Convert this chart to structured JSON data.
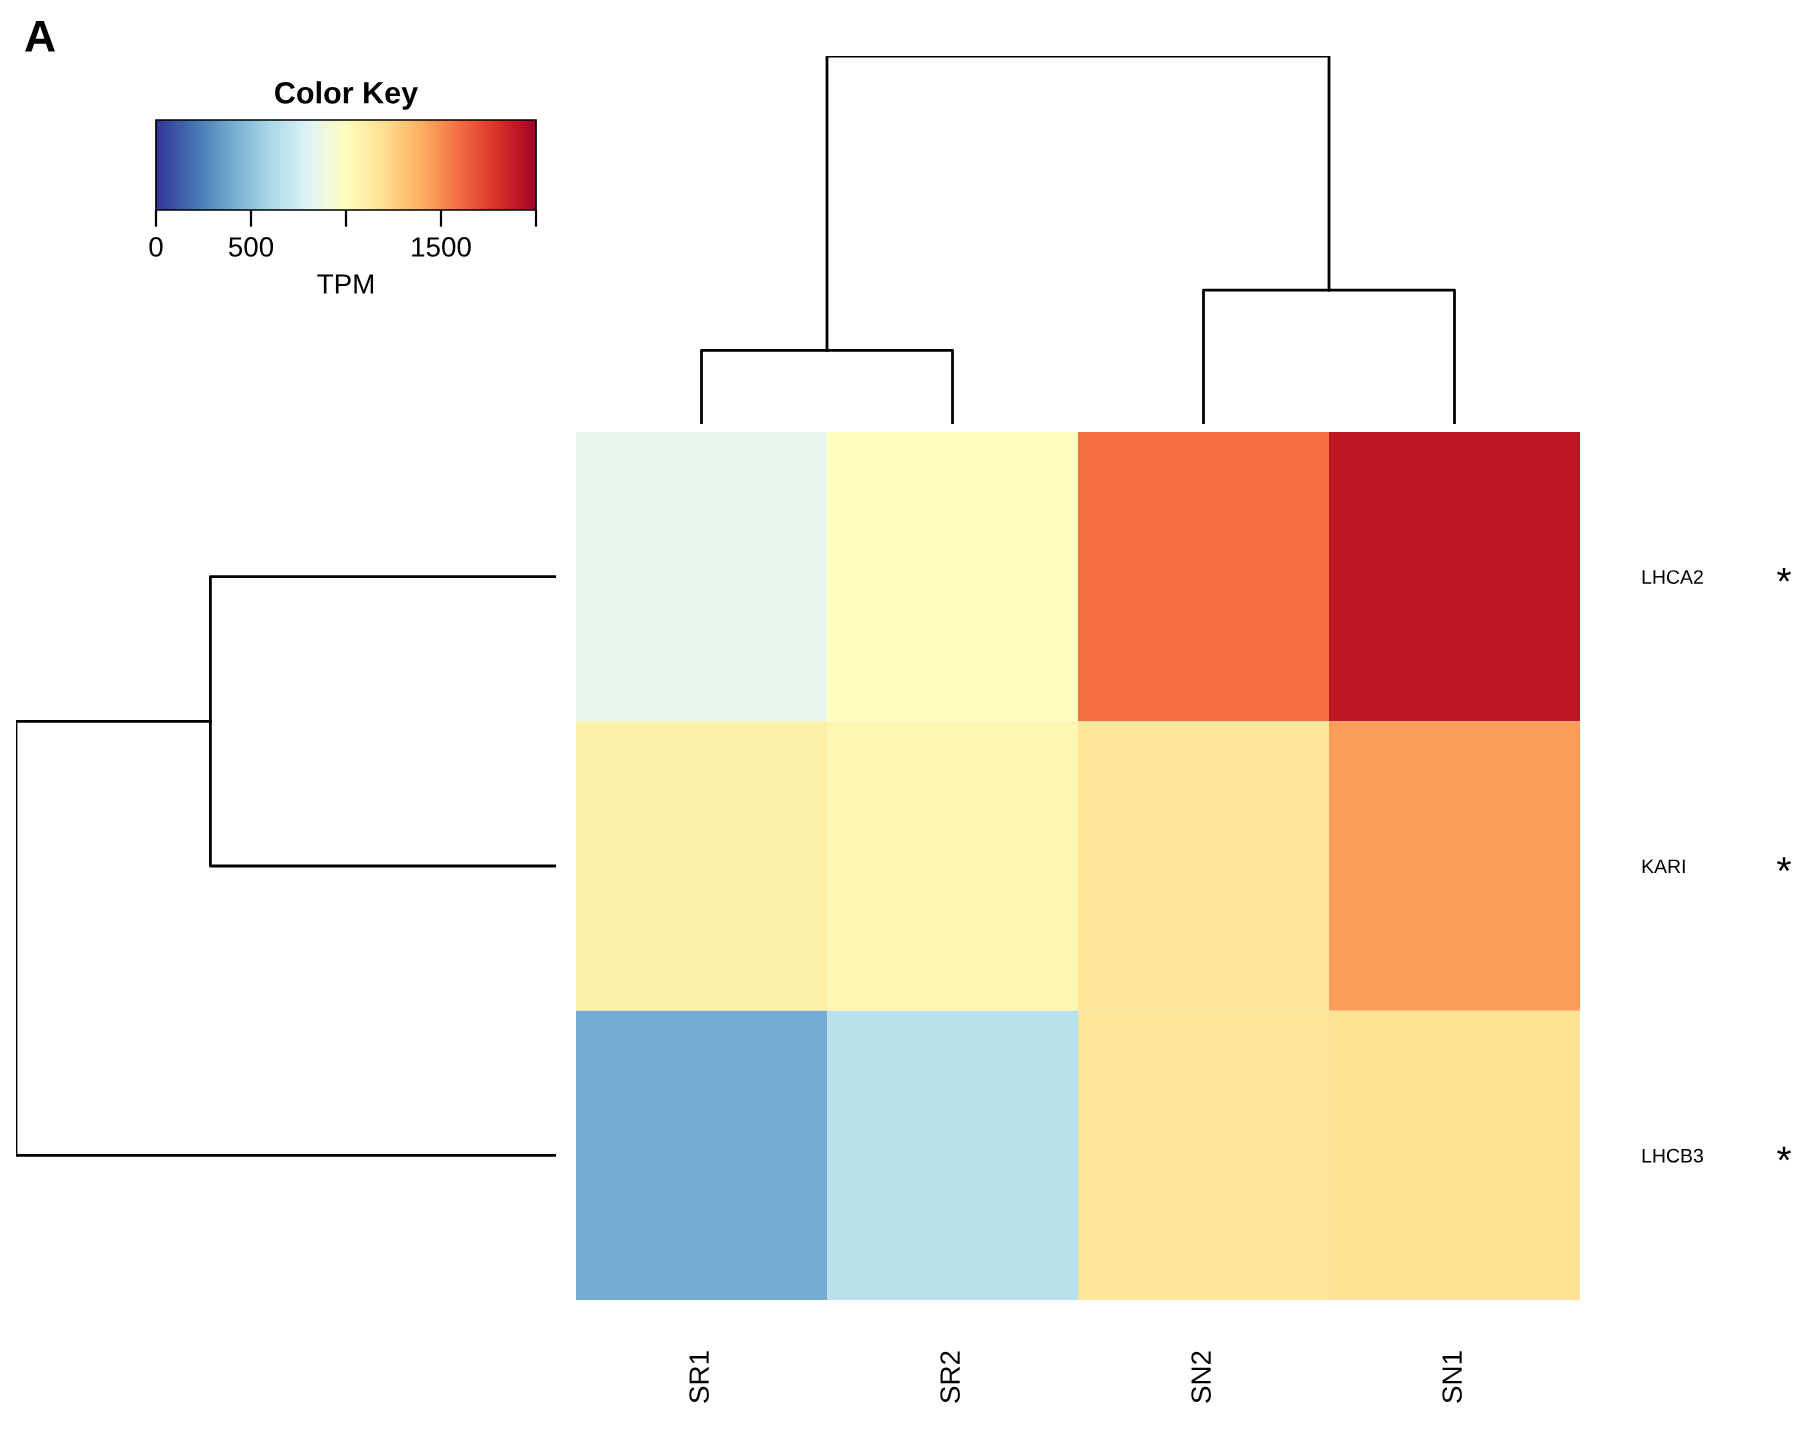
{
  "chart_data": {
    "type": "heatmap",
    "categories": [
      "SR1",
      "SR2",
      "SN2",
      "SN1"
    ],
    "y_categories": [
      "LHCA2",
      "KARI",
      "LHCB3"
    ],
    "cells": [
      [
        850,
        1000,
        1600,
        1900
      ],
      [
        1100,
        1050,
        1150,
        1450
      ],
      [
        400,
        650,
        1150,
        1180
      ]
    ],
    "clim": [
      0,
      2000
    ],
    "cticks": [
      0,
      500,
      {
        "value": 1000,
        "label": null
      },
      1500,
      {
        "value": 2000,
        "label": null
      }
    ],
    "legend_title": "Color Key",
    "clabel": "TPM",
    "annotations": [
      "A",
      "*",
      "*",
      "*"
    ]
  }
}
